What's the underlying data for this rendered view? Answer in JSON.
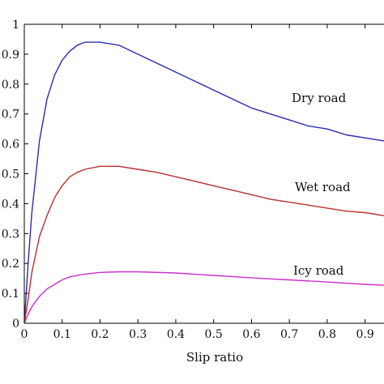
{
  "chart_data": {
    "type": "line",
    "title": "",
    "xlabel": "Slip ratio",
    "ylabel": "",
    "xlim": [
      0,
      0.95
    ],
    "ylim": [
      0,
      1
    ],
    "grid": false,
    "legend": "inline labels near curves",
    "x_ticks": [
      "0",
      "0.1",
      "0.2",
      "0.3",
      "0.4",
      "0.5",
      "0.6",
      "0.7",
      "0.8",
      "0.9"
    ],
    "y_ticks": [
      "0",
      "0.1",
      "0.2",
      "0.3",
      "0.4",
      "0.5",
      "0.6",
      "0.7",
      "0.8",
      "0.9",
      "1"
    ],
    "series": [
      {
        "name": "Dry road",
        "color": "#2b2bb0",
        "points": [
          [
            0,
            0
          ],
          [
            0.01,
            0.2
          ],
          [
            0.02,
            0.37
          ],
          [
            0.04,
            0.61
          ],
          [
            0.06,
            0.75
          ],
          [
            0.08,
            0.83
          ],
          [
            0.1,
            0.88
          ],
          [
            0.12,
            0.91
          ],
          [
            0.14,
            0.93
          ],
          [
            0.16,
            0.94
          ],
          [
            0.2,
            0.94
          ],
          [
            0.25,
            0.93
          ],
          [
            0.3,
            0.9
          ],
          [
            0.35,
            0.87
          ],
          [
            0.4,
            0.84
          ],
          [
            0.45,
            0.81
          ],
          [
            0.5,
            0.78
          ],
          [
            0.55,
            0.75
          ],
          [
            0.6,
            0.72
          ],
          [
            0.65,
            0.7
          ],
          [
            0.7,
            0.68
          ],
          [
            0.75,
            0.66
          ],
          [
            0.8,
            0.65
          ],
          [
            0.85,
            0.63
          ],
          [
            0.9,
            0.62
          ],
          [
            0.95,
            0.61
          ]
        ]
      },
      {
        "name": "Wet road",
        "color": "#b83030",
        "points": [
          [
            0,
            0
          ],
          [
            0.01,
            0.08
          ],
          [
            0.02,
            0.17
          ],
          [
            0.04,
            0.29
          ],
          [
            0.06,
            0.36
          ],
          [
            0.08,
            0.42
          ],
          [
            0.1,
            0.46
          ],
          [
            0.12,
            0.49
          ],
          [
            0.14,
            0.505
          ],
          [
            0.16,
            0.515
          ],
          [
            0.2,
            0.525
          ],
          [
            0.25,
            0.525
          ],
          [
            0.3,
            0.515
          ],
          [
            0.35,
            0.505
          ],
          [
            0.4,
            0.49
          ],
          [
            0.45,
            0.475
          ],
          [
            0.5,
            0.46
          ],
          [
            0.55,
            0.445
          ],
          [
            0.6,
            0.43
          ],
          [
            0.65,
            0.415
          ],
          [
            0.7,
            0.405
          ],
          [
            0.75,
            0.395
          ],
          [
            0.8,
            0.385
          ],
          [
            0.85,
            0.375
          ],
          [
            0.9,
            0.37
          ],
          [
            0.95,
            0.36
          ]
        ]
      },
      {
        "name": "Icy road",
        "color": "#cc30cc",
        "points": [
          [
            0,
            0
          ],
          [
            0.01,
            0.03
          ],
          [
            0.02,
            0.055
          ],
          [
            0.04,
            0.09
          ],
          [
            0.06,
            0.115
          ],
          [
            0.08,
            0.13
          ],
          [
            0.1,
            0.145
          ],
          [
            0.12,
            0.155
          ],
          [
            0.15,
            0.163
          ],
          [
            0.2,
            0.17
          ],
          [
            0.25,
            0.172
          ],
          [
            0.3,
            0.172
          ],
          [
            0.4,
            0.168
          ],
          [
            0.5,
            0.16
          ],
          [
            0.6,
            0.152
          ],
          [
            0.7,
            0.145
          ],
          [
            0.8,
            0.138
          ],
          [
            0.9,
            0.13
          ],
          [
            0.95,
            0.127
          ]
        ]
      }
    ]
  }
}
